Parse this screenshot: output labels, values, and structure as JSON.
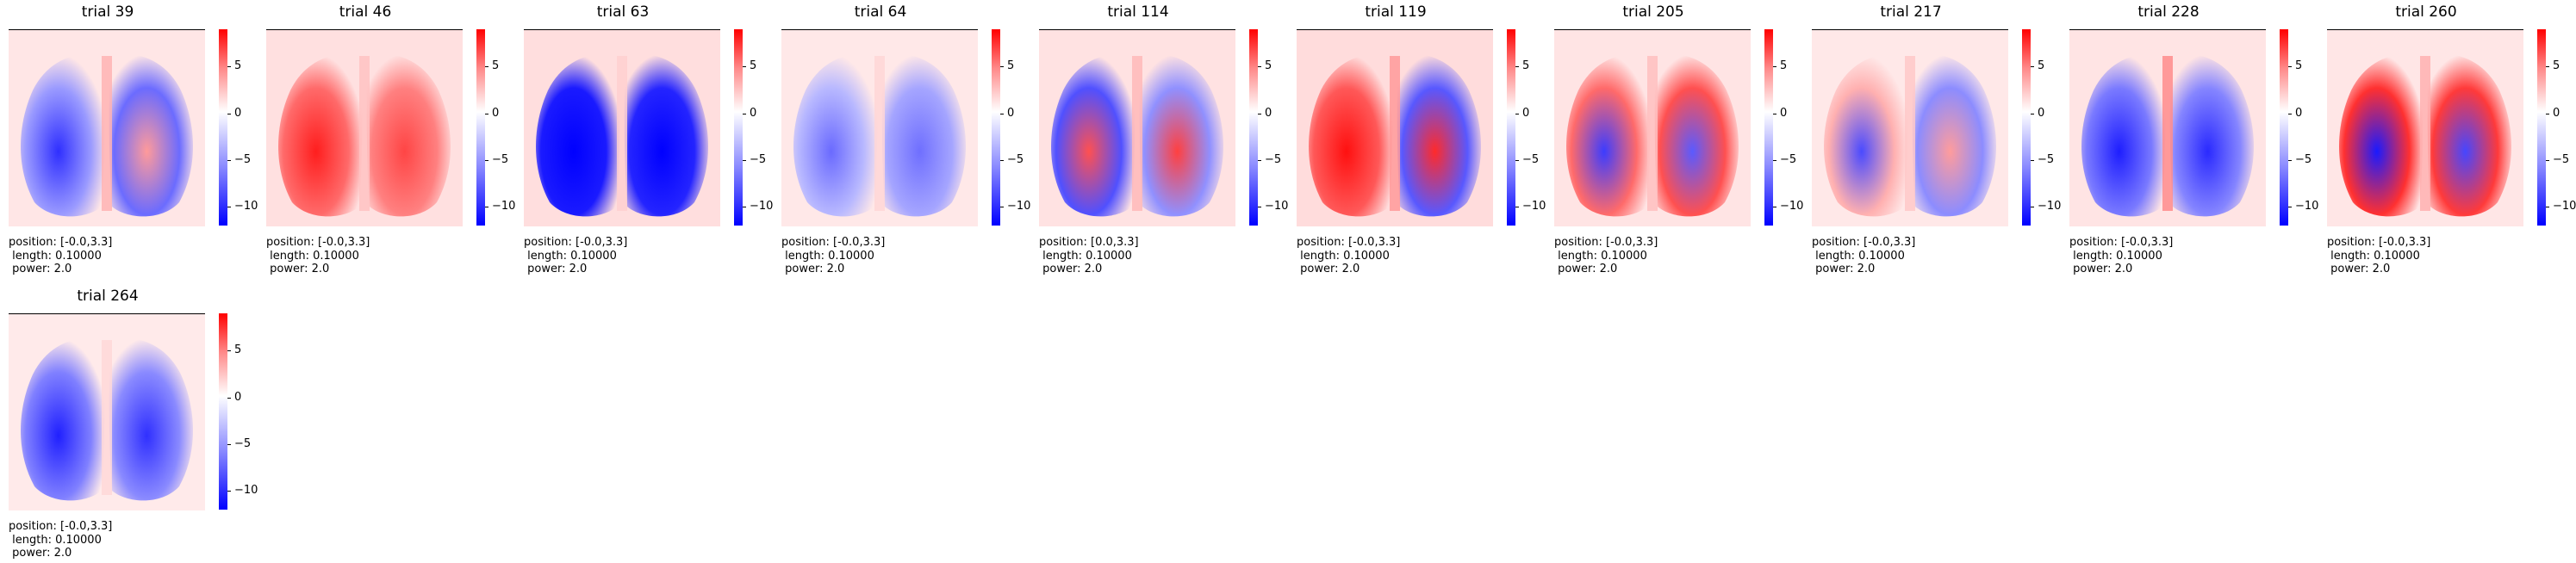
{
  "chart_data": {
    "type": "heatmap",
    "colorbar": {
      "colormap": "bwr",
      "ticks": [
        5,
        0,
        -5,
        -10
      ],
      "tick_labels": [
        "5",
        "0",
        "−5",
        "−10"
      ],
      "range": [
        -12,
        9
      ]
    },
    "panels": [
      {
        "title": "trial 39",
        "position": "position: [-0.0,3.3]",
        "length": " length: 0.10000",
        "power": " power: 2.0",
        "pattern": "blue_left"
      },
      {
        "title": "trial 46",
        "position": "position: [-0.0,3.3]",
        "length": " length: 0.10000",
        "power": " power: 2.0",
        "pattern": "red"
      },
      {
        "title": "trial 63",
        "position": "position: [-0.0,3.3]",
        "length": " length: 0.10000",
        "power": " power: 2.0",
        "pattern": "blue_strong"
      },
      {
        "title": "trial 64",
        "position": "position: [-0.0,3.3]",
        "length": " length: 0.10000",
        "power": " power: 2.0",
        "pattern": "blue_mild"
      },
      {
        "title": "trial 114",
        "position": "position: [0.0,3.3]",
        "length": " length: 0.10000",
        "power": " power: 2.0",
        "pattern": "mixed_red"
      },
      {
        "title": "trial 119",
        "position": "position: [-0.0,3.3]",
        "length": " length: 0.10000",
        "power": " power: 2.0",
        "pattern": "red_strong"
      },
      {
        "title": "trial 205",
        "position": "position: [-0.0,3.3]",
        "length": " length: 0.10000",
        "power": " power: 2.0",
        "pattern": "mixed_blue"
      },
      {
        "title": "trial 217",
        "position": "position: [-0.0,3.3]",
        "length": " length: 0.10000",
        "power": " power: 2.0",
        "pattern": "blue_left_mild"
      },
      {
        "title": "trial 228",
        "position": "position: [-0.0,3.3]",
        "length": " length: 0.10000",
        "power": " power: 2.0",
        "pattern": "blue_center_red"
      },
      {
        "title": "trial 260",
        "position": "position: [-0.0,3.3]",
        "length": " length: 0.10000",
        "power": " power: 2.0",
        "pattern": "blue_red_top"
      },
      {
        "title": "trial 264",
        "position": "position: [-0.0,3.3]",
        "length": " length: 0.10000",
        "power": " power: 2.0",
        "pattern": "blue"
      }
    ]
  },
  "colors": {
    "red": "#ff0000",
    "blue": "#0000ff",
    "background_pale": "#ffe6e6"
  }
}
